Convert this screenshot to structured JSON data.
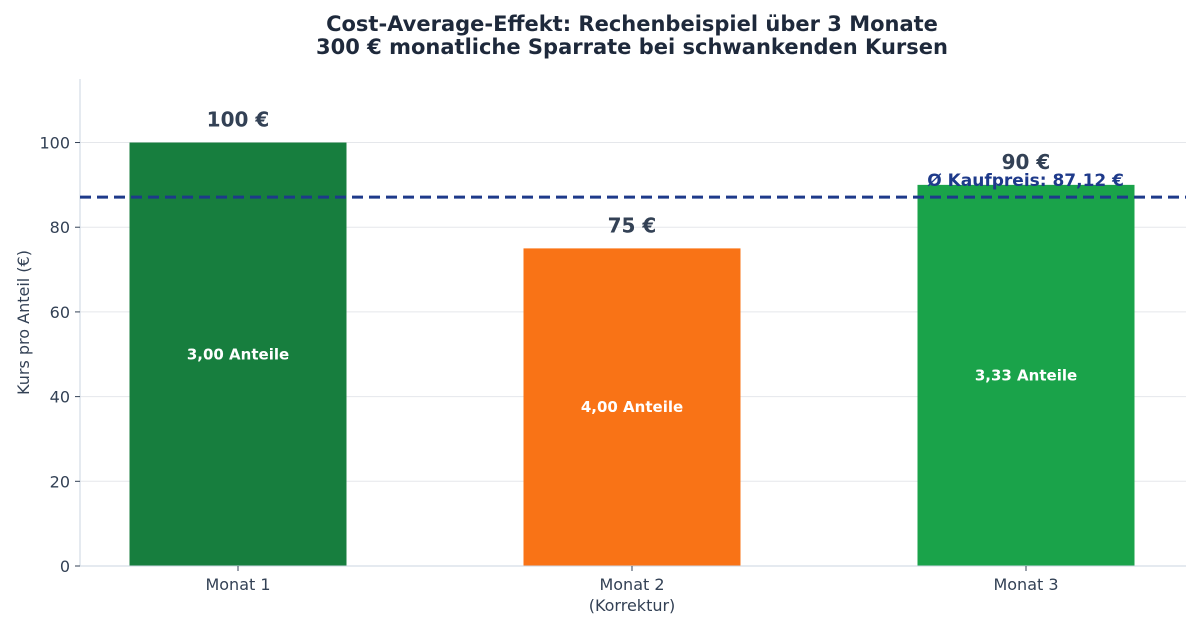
{
  "chart_data": {
    "type": "bar",
    "title": [
      "Cost-Average-Effekt: Rechenbeispiel über 3 Monate",
      "300 € monatliche Sparrate bei schwankenden Kursen"
    ],
    "ylabel": "Kurs pro Anteil (€)",
    "xlabel": "",
    "ylim": [
      0,
      115
    ],
    "yticks": [
      0,
      20,
      40,
      60,
      80,
      100
    ],
    "grid": true,
    "categories": [
      [
        "Monat 1"
      ],
      [
        "Monat 2",
        "(Korrektur)"
      ],
      [
        "Monat 3"
      ]
    ],
    "values": [
      100,
      75,
      90
    ],
    "value_labels": [
      "100 €",
      "75 €",
      "90 €"
    ],
    "bar_labels": [
      "3,00 Anteile",
      "4,00 Anteile",
      "3,33 Anteile"
    ],
    "colors": [
      "#177e3e",
      "#f97316",
      "#1aa34a"
    ],
    "reference_line": {
      "value": 87.12,
      "label": "Ø Kaufpreis: 87,12 €",
      "color": "#1e3a8a",
      "style": "dashed"
    }
  }
}
